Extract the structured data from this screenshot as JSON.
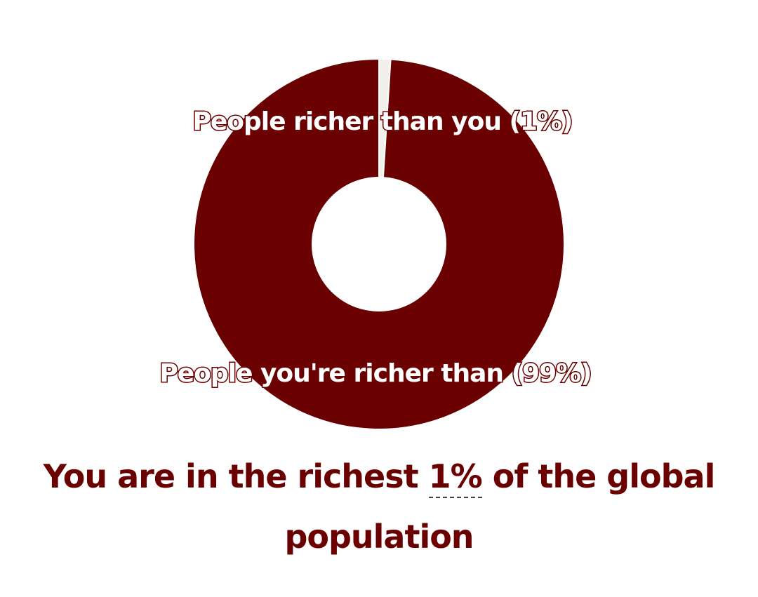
{
  "chart_data": {
    "type": "pie",
    "donut": true,
    "slices": [
      {
        "label": "People richer than you (1%)",
        "value": 1,
        "color": "#f2eeea"
      },
      {
        "label": "People you're richer than (99%)",
        "value": 99,
        "color": "#6b0000"
      }
    ]
  },
  "headline": {
    "prefix": "You are in the richest ",
    "highlight": "1%",
    "suffix": " of the global population"
  },
  "colors": {
    "accent": "#6b0000",
    "background": "#ffffff"
  }
}
